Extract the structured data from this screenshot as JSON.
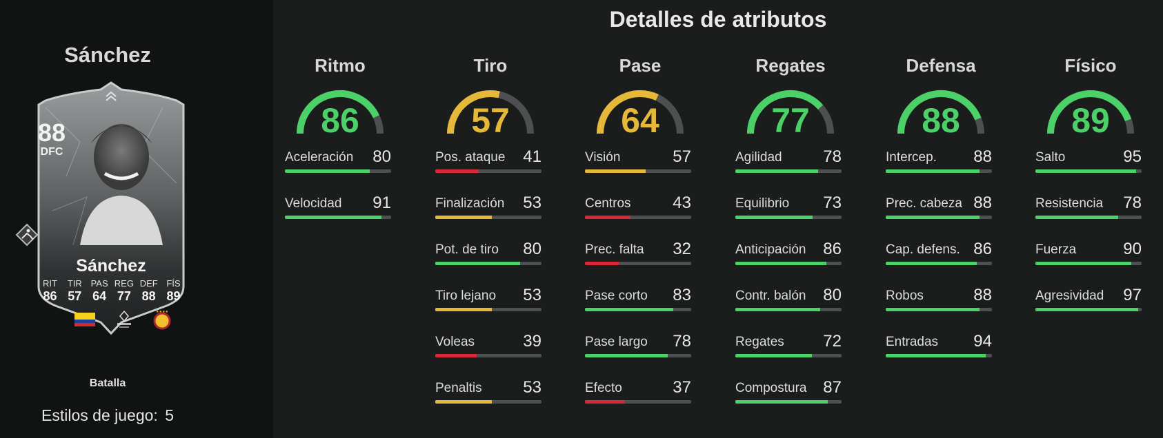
{
  "player": {
    "name": "Sánchez",
    "card_name": "Sánchez",
    "rating": "88",
    "position": "DFC",
    "card_stats": [
      {
        "label": "RIT",
        "value": "86"
      },
      {
        "label": "TIR",
        "value": "57"
      },
      {
        "label": "PAS",
        "value": "64"
      },
      {
        "label": "REG",
        "value": "77"
      },
      {
        "label": "DEF",
        "value": "88"
      },
      {
        "label": "FÍS",
        "value": "89"
      }
    ],
    "playstyle_name": "Batalla",
    "playstyles_label": "Estilos de juego:",
    "playstyles_count": "5"
  },
  "title": "Detalles de atributos",
  "colors": {
    "green": "#4bd168",
    "yellow": "#e6b83a",
    "red": "#d8283a",
    "track": "#4d4f50"
  },
  "groups": [
    {
      "name": "Ritmo",
      "value": 86,
      "attrs": [
        {
          "name": "Aceleración",
          "value": 80
        },
        {
          "name": "Velocidad",
          "value": 91
        }
      ]
    },
    {
      "name": "Tiro",
      "value": 57,
      "attrs": [
        {
          "name": "Pos. ataque",
          "value": 41
        },
        {
          "name": "Finalización",
          "value": 53
        },
        {
          "name": "Pot. de tiro",
          "value": 80
        },
        {
          "name": "Tiro lejano",
          "value": 53
        },
        {
          "name": "Voleas",
          "value": 39
        },
        {
          "name": "Penaltis",
          "value": 53
        }
      ]
    },
    {
      "name": "Pase",
      "value": 64,
      "attrs": [
        {
          "name": "Visión",
          "value": 57
        },
        {
          "name": "Centros",
          "value": 43
        },
        {
          "name": "Prec. falta",
          "value": 32
        },
        {
          "name": "Pase corto",
          "value": 83
        },
        {
          "name": "Pase largo",
          "value": 78
        },
        {
          "name": "Efecto",
          "value": 37
        }
      ]
    },
    {
      "name": "Regates",
      "value": 77,
      "attrs": [
        {
          "name": "Agilidad",
          "value": 78
        },
        {
          "name": "Equilibrio",
          "value": 73
        },
        {
          "name": "Anticipación",
          "value": 86
        },
        {
          "name": "Contr. balón",
          "value": 80
        },
        {
          "name": "Regates",
          "value": 72
        },
        {
          "name": "Compostura",
          "value": 87
        }
      ]
    },
    {
      "name": "Defensa",
      "value": 88,
      "attrs": [
        {
          "name": "Intercep.",
          "value": 88
        },
        {
          "name": "Prec. cabeza",
          "value": 88
        },
        {
          "name": "Cap. defens.",
          "value": 86
        },
        {
          "name": "Robos",
          "value": 88
        },
        {
          "name": "Entradas",
          "value": 94
        }
      ]
    },
    {
      "name": "Físico",
      "value": 89,
      "attrs": [
        {
          "name": "Salto",
          "value": 95
        },
        {
          "name": "Resistencia",
          "value": 78
        },
        {
          "name": "Fuerza",
          "value": 90
        },
        {
          "name": "Agresividad",
          "value": 97
        }
      ]
    }
  ]
}
